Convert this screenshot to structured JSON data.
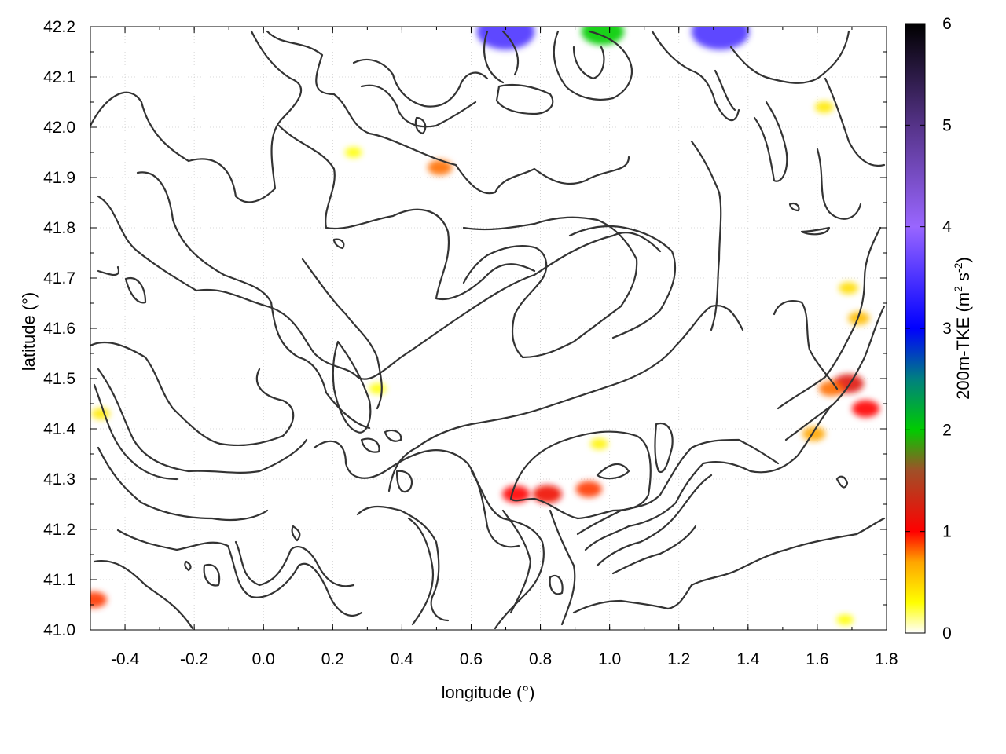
{
  "chart_data": {
    "type": "heatmap",
    "xlabel": "longitude (°)",
    "ylabel": "latitude (°)",
    "colorbar_label": "200m-TKE (m² s⁻²)",
    "colorbar_label_parts": {
      "prefix": "200m-TKE (m",
      "sup1": "2",
      "mid": " s",
      "sup2": "-2",
      "suffix": ")"
    },
    "xlim": [
      -0.5,
      1.8
    ],
    "ylim": [
      41.0,
      42.2
    ],
    "clim": [
      0,
      6
    ],
    "grid": true,
    "x_ticks": [
      -0.4,
      -0.2,
      0.0,
      0.2,
      0.4,
      0.6,
      0.8,
      1.0,
      1.2,
      1.4,
      1.6,
      1.8
    ],
    "x_tick_labels": [
      "-0.4",
      "-0.2",
      "0.0",
      "0.2",
      "0.4",
      "0.6",
      "0.8",
      "1.0",
      "1.2",
      "1.4",
      "1.6",
      "1.8"
    ],
    "y_ticks": [
      41.0,
      41.1,
      41.2,
      41.3,
      41.4,
      41.5,
      41.6,
      41.7,
      41.8,
      41.9,
      42.0,
      42.1,
      42.2
    ],
    "y_tick_labels": [
      "41.0",
      "41.1",
      "41.2",
      "41.3",
      "41.4",
      "41.5",
      "41.6",
      "41.7",
      "41.8",
      "41.9",
      "42.0",
      "42.1",
      "42.2"
    ],
    "colorbar_ticks": [
      0,
      1,
      2,
      3,
      4,
      5,
      6
    ],
    "colorbar_tick_labels": [
      "0",
      "1",
      "2",
      "3",
      "4",
      "5",
      "6"
    ],
    "colormap": [
      {
        "v": 0.0,
        "color": "#ffffff"
      },
      {
        "v": 0.3,
        "color": "#ffff00"
      },
      {
        "v": 0.7,
        "color": "#ffa500"
      },
      {
        "v": 1.0,
        "color": "#ff0000"
      },
      {
        "v": 1.6,
        "color": "#a05028"
      },
      {
        "v": 2.0,
        "color": "#00cc00"
      },
      {
        "v": 2.5,
        "color": "#008080"
      },
      {
        "v": 3.0,
        "color": "#0000ff"
      },
      {
        "v": 4.0,
        "color": "#9966ff"
      },
      {
        "v": 5.0,
        "color": "#553388"
      },
      {
        "v": 6.0,
        "color": "#000000"
      }
    ],
    "contour_color": "#333333",
    "tke_hotspots": [
      {
        "lon": 1.69,
        "lat": 41.49,
        "value": 1.2
      },
      {
        "lon": 1.74,
        "lat": 41.44,
        "value": 1.0
      },
      {
        "lon": 1.64,
        "lat": 41.48,
        "value": 0.8
      },
      {
        "lon": 1.59,
        "lat": 41.39,
        "value": 0.7
      },
      {
        "lon": 1.72,
        "lat": 41.62,
        "value": 0.6
      },
      {
        "lon": 0.73,
        "lat": 41.27,
        "value": 1.0
      },
      {
        "lon": 0.82,
        "lat": 41.27,
        "value": 1.1
      },
      {
        "lon": 0.94,
        "lat": 41.28,
        "value": 0.9
      },
      {
        "lon": 0.51,
        "lat": 41.92,
        "value": 0.8
      },
      {
        "lon": 0.7,
        "lat": 42.19,
        "value": 3.5
      },
      {
        "lon": 1.32,
        "lat": 42.19,
        "value": 3.5
      },
      {
        "lon": 0.98,
        "lat": 42.19,
        "value": 2.0
      },
      {
        "lon": -0.49,
        "lat": 41.06,
        "value": 0.9
      },
      {
        "lon": -0.47,
        "lat": 41.43,
        "value": 0.4
      },
      {
        "lon": 1.68,
        "lat": 41.02,
        "value": 0.3
      },
      {
        "lon": 1.62,
        "lat": 42.04,
        "value": 0.4
      },
      {
        "lon": 0.97,
        "lat": 41.37,
        "value": 0.35
      },
      {
        "lon": 1.69,
        "lat": 41.68,
        "value": 0.45
      },
      {
        "lon": 0.33,
        "lat": 41.48,
        "value": 0.3
      },
      {
        "lon": 0.26,
        "lat": 41.95,
        "value": 0.3
      }
    ]
  }
}
